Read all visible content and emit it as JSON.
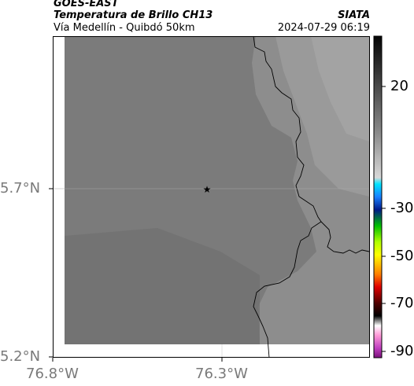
{
  "header": {
    "satellite": "GOES-EAST",
    "product": "Temperatura de Brillo CH13",
    "region": "Vía Medellín - Quibdó 50km",
    "source": "SIATA",
    "datetime": "2024-07-29 06:19"
  },
  "axes": {
    "x_ticks": [
      "76.8°W",
      "76.3°W"
    ],
    "y_ticks": [
      "5.7°N",
      "5.2°N"
    ]
  },
  "colorbar": {
    "ticks": [
      "20",
      "-30",
      "-50",
      "-70",
      "-90"
    ]
  },
  "marker": {
    "symbol": "star",
    "label": ""
  },
  "colors": {
    "background_gray": "#7f7f7f",
    "border": "#000000"
  }
}
